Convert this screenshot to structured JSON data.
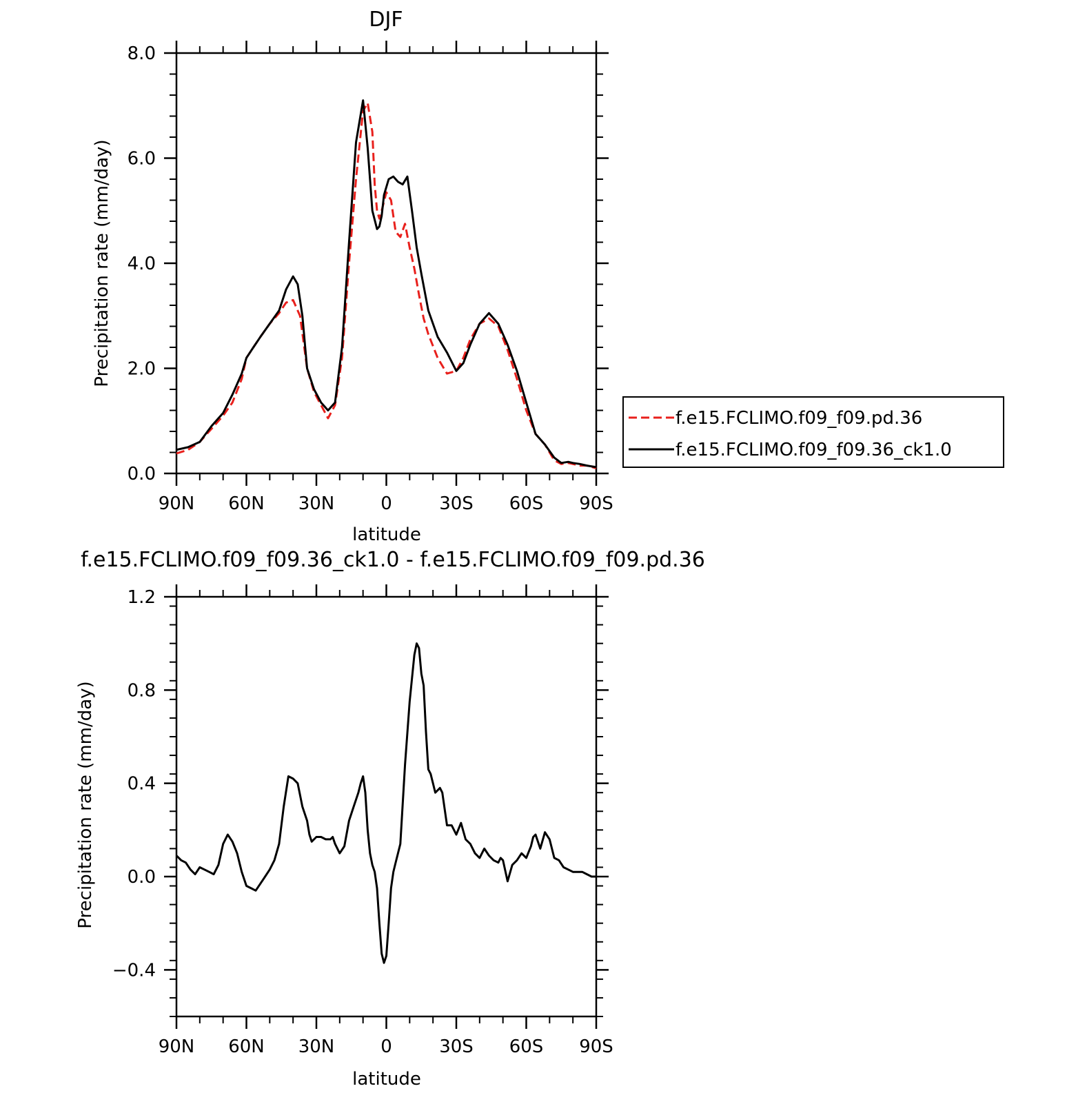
{
  "chart_data": [
    {
      "type": "line",
      "title": "DJF",
      "xlabel": "latitude",
      "ylabel": "Precipitation rate (mm/day)",
      "xlim": [
        90,
        -90
      ],
      "ylim": [
        0,
        8
      ],
      "x_ticks": [
        90,
        60,
        30,
        0,
        -30,
        -60,
        -90
      ],
      "x_tick_labels": [
        "90N",
        "60N",
        "30N",
        "0",
        "30S",
        "60S",
        "90S"
      ],
      "y_ticks": [
        0,
        2,
        4,
        6,
        8
      ],
      "y_tick_labels": [
        "0.0",
        "2.0",
        "4.0",
        "6.0",
        "8.0"
      ],
      "legend_position": "right",
      "series": [
        {
          "name": "f.e15.FCLIMO.f09_f09.pd.36",
          "color": "#e8201c",
          "dash": "dashed",
          "x": [
            90,
            85,
            80,
            75,
            70,
            66,
            62,
            60,
            57,
            54,
            50,
            46,
            43,
            40,
            37,
            34,
            31,
            28,
            25,
            22,
            19,
            16,
            13,
            10,
            8,
            6,
            5,
            4,
            3,
            2,
            0,
            -2,
            -4,
            -6,
            -8,
            -10,
            -12,
            -14,
            -16,
            -18,
            -22,
            -26,
            -30,
            -33,
            -36,
            -40,
            -44,
            -48,
            -52,
            -56,
            -60,
            -64,
            -66,
            -68,
            -72,
            -75,
            -78,
            -80,
            -83,
            -86,
            -90
          ],
          "y": [
            0.38,
            0.45,
            0.6,
            0.85,
            1.1,
            1.35,
            1.8,
            2.2,
            2.4,
            2.6,
            2.85,
            3.05,
            3.25,
            3.3,
            3.0,
            2.0,
            1.55,
            1.3,
            1.05,
            1.3,
            2.2,
            4.0,
            5.6,
            6.9,
            7.05,
            6.5,
            5.5,
            5.0,
            4.85,
            5.0,
            5.35,
            5.2,
            4.6,
            4.5,
            4.75,
            4.3,
            3.9,
            3.4,
            2.95,
            2.65,
            2.2,
            1.9,
            1.95,
            2.2,
            2.55,
            2.85,
            2.95,
            2.8,
            2.35,
            1.8,
            1.2,
            0.75,
            0.65,
            0.55,
            0.25,
            0.18,
            0.2,
            0.18,
            0.15,
            0.15,
            0.1
          ]
        },
        {
          "name": "f.e15.FCLIMO.f09_f09.36_ck1.0",
          "color": "#000000",
          "dash": "solid",
          "x": [
            90,
            85,
            80,
            75,
            70,
            66,
            62,
            60,
            57,
            54,
            50,
            46,
            43,
            40,
            38,
            36,
            34,
            31,
            28,
            25,
            22,
            19,
            16,
            13,
            10,
            8,
            6,
            4,
            3,
            2,
            1,
            -1,
            -3,
            -5,
            -7,
            -9,
            -11,
            -13,
            -15,
            -18,
            -22,
            -26,
            -30,
            -33,
            -36,
            -40,
            -44,
            -48,
            -52,
            -56,
            -60,
            -64,
            -66,
            -68,
            -72,
            -75,
            -78,
            -80,
            -83,
            -86,
            -90
          ],
          "y": [
            0.45,
            0.5,
            0.6,
            0.9,
            1.15,
            1.5,
            1.9,
            2.2,
            2.4,
            2.6,
            2.85,
            3.1,
            3.5,
            3.75,
            3.6,
            3.0,
            2.0,
            1.6,
            1.35,
            1.2,
            1.35,
            2.4,
            4.4,
            6.3,
            7.1,
            6.2,
            5.0,
            4.65,
            4.7,
            4.9,
            5.3,
            5.6,
            5.65,
            5.55,
            5.5,
            5.65,
            5.0,
            4.3,
            3.8,
            3.1,
            2.6,
            2.3,
            1.95,
            2.1,
            2.45,
            2.85,
            3.05,
            2.85,
            2.45,
            1.95,
            1.35,
            0.75,
            0.65,
            0.55,
            0.3,
            0.2,
            0.22,
            0.2,
            0.18,
            0.15,
            0.12
          ]
        }
      ]
    },
    {
      "type": "line",
      "title": "f.e15.FCLIMO.f09_f09.36_ck1.0 - f.e15.FCLIMO.f09_f09.pd.36",
      "xlabel": "latitude",
      "ylabel": "Precipitation rate (mm/day)",
      "xlim": [
        90,
        -90
      ],
      "ylim": [
        -0.6,
        1.2
      ],
      "x_ticks": [
        90,
        60,
        30,
        0,
        -30,
        -60,
        -90
      ],
      "x_tick_labels": [
        "90N",
        "60N",
        "30N",
        "0",
        "30S",
        "60S",
        "90S"
      ],
      "y_ticks": [
        -0.4,
        0,
        0.4,
        0.8,
        1.2
      ],
      "y_tick_labels": [
        "−0.4",
        "0.0",
        "0.4",
        "0.8",
        "1.2"
      ],
      "series": [
        {
          "color": "#000000",
          "dash": "solid",
          "x": [
            90,
            88,
            86,
            84,
            82,
            80,
            78,
            76,
            74,
            72,
            70,
            68,
            66,
            64,
            62,
            60,
            58,
            56,
            54,
            52,
            50,
            48,
            46,
            44,
            42,
            40,
            38,
            36,
            34,
            33,
            32,
            30,
            29,
            28,
            26,
            24,
            23,
            22,
            20,
            18,
            16,
            14,
            12,
            11,
            10,
            9,
            8,
            7,
            6,
            5,
            4,
            3,
            2,
            1,
            0,
            -1,
            -2,
            -3,
            -4,
            -6,
            -8,
            -10,
            -11,
            -12,
            -13,
            -14,
            -15,
            -16,
            -17,
            -18,
            -19,
            -20,
            -21,
            -22,
            -23,
            -24,
            -26,
            -28,
            -30,
            -32,
            -34,
            -36,
            -38,
            -40,
            -42,
            -44,
            -46,
            -48,
            -49,
            -50,
            -52,
            -54,
            -56,
            -58,
            -60,
            -62,
            -63,
            -64,
            -66,
            -68,
            -70,
            -72,
            -74,
            -76,
            -78,
            -80,
            -82,
            -84,
            -86,
            -88,
            -90
          ],
          "y": [
            0.09,
            0.07,
            0.06,
            0.03,
            0.01,
            0.04,
            0.03,
            0.02,
            0.01,
            0.05,
            0.14,
            0.18,
            0.15,
            0.1,
            0.02,
            -0.04,
            -0.05,
            -0.06,
            -0.03,
            0.0,
            0.03,
            0.07,
            0.14,
            0.3,
            0.43,
            0.42,
            0.4,
            0.3,
            0.24,
            0.18,
            0.15,
            0.17,
            0.17,
            0.17,
            0.16,
            0.16,
            0.17,
            0.14,
            0.1,
            0.13,
            0.24,
            0.3,
            0.36,
            0.4,
            0.43,
            0.36,
            0.2,
            0.1,
            0.05,
            0.02,
            -0.05,
            -0.2,
            -0.33,
            -0.37,
            -0.34,
            -0.2,
            -0.05,
            0.02,
            0.06,
            0.14,
            0.48,
            0.75,
            0.85,
            0.95,
            1.0,
            0.98,
            0.87,
            0.82,
            0.62,
            0.46,
            0.44,
            0.4,
            0.36,
            0.37,
            0.38,
            0.36,
            0.22,
            0.22,
            0.18,
            0.23,
            0.16,
            0.14,
            0.1,
            0.08,
            0.12,
            0.09,
            0.07,
            0.06,
            0.08,
            0.07,
            -0.02,
            0.05,
            0.07,
            0.1,
            0.08,
            0.13,
            0.17,
            0.18,
            0.12,
            0.19,
            0.16,
            0.08,
            0.07,
            0.04,
            0.03,
            0.02,
            0.02,
            0.02,
            0.01,
            0.0,
            0.0
          ]
        }
      ]
    }
  ]
}
